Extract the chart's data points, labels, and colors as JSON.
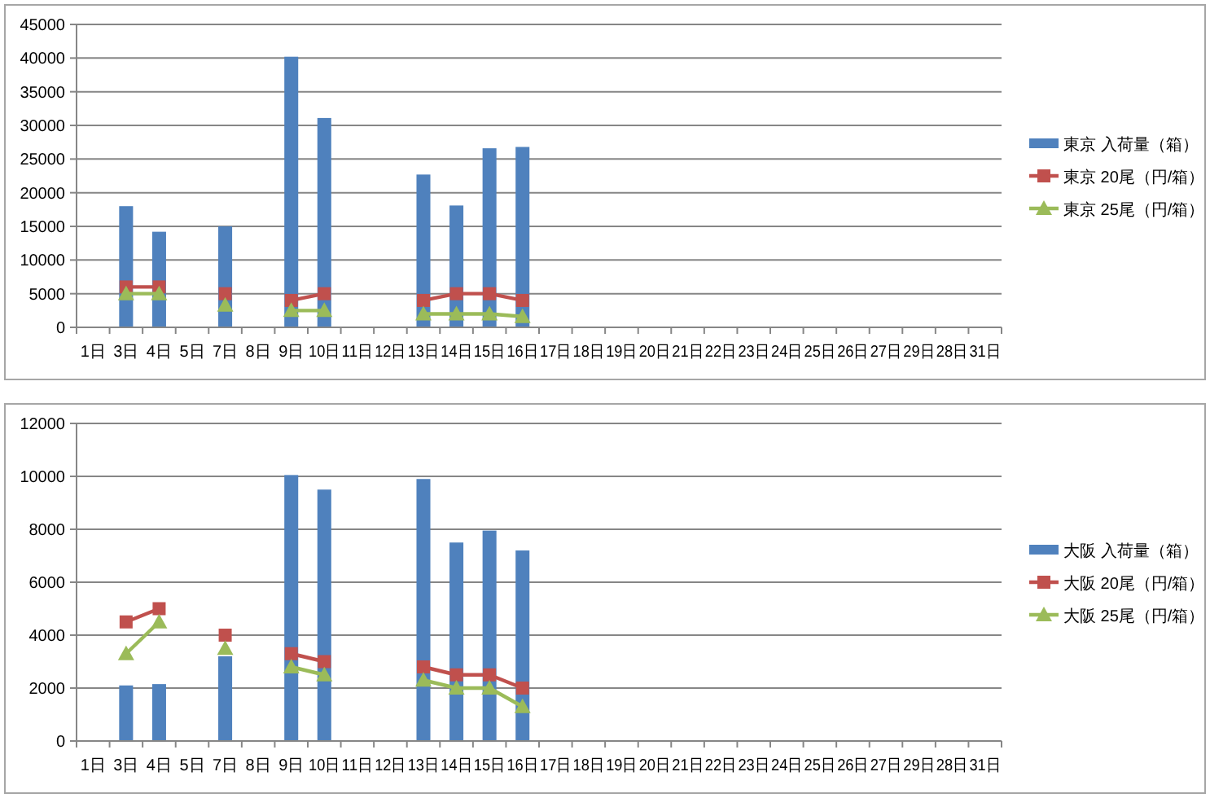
{
  "chart_data": [
    {
      "type": "bar",
      "categories": [
        "1日",
        "3日",
        "4日",
        "5日",
        "7日",
        "8日",
        "9日",
        "10日",
        "11日",
        "12日",
        "13日",
        "14日",
        "15日",
        "16日",
        "17日",
        "18日",
        "19日",
        "20日",
        "21日",
        "22日",
        "23日",
        "24日",
        "25日",
        "26日",
        "27日",
        "29日",
        "28日",
        "31日"
      ],
      "ylim": [
        0,
        45000
      ],
      "yticks": [
        0,
        5000,
        10000,
        15000,
        20000,
        25000,
        30000,
        35000,
        40000,
        45000
      ],
      "grid": "y",
      "legend": "right",
      "series": [
        {
          "name": "東京 入荷量（箱）",
          "color": "#4f81bd",
          "values": [
            null,
            18000,
            14200,
            null,
            15000,
            null,
            40200,
            31100,
            null,
            null,
            22700,
            18100,
            26600,
            26800,
            null,
            null,
            null,
            null,
            null,
            null,
            null,
            null,
            null,
            null,
            null,
            null,
            null,
            null
          ]
        },
        {
          "name": "東京 20尾（円/箱）",
          "type": "line",
          "marker": "square",
          "color": "#c0504d",
          "values": [
            null,
            6000,
            6000,
            null,
            5000,
            null,
            4000,
            5000,
            null,
            null,
            4000,
            5000,
            5000,
            4000,
            null,
            null,
            null,
            null,
            null,
            null,
            null,
            null,
            null,
            null,
            null,
            null,
            null,
            null
          ]
        },
        {
          "name": "東京 25尾（円/箱）",
          "type": "line",
          "marker": "triangle",
          "color": "#9bbb59",
          "values": [
            null,
            5000,
            5000,
            null,
            3300,
            null,
            2500,
            2500,
            null,
            null,
            2000,
            2000,
            2000,
            1600,
            null,
            null,
            null,
            null,
            null,
            null,
            null,
            null,
            null,
            null,
            null,
            null,
            null,
            null
          ]
        }
      ]
    },
    {
      "type": "bar",
      "categories": [
        "1日",
        "3日",
        "4日",
        "5日",
        "7日",
        "8日",
        "9日",
        "10日",
        "11日",
        "12日",
        "13日",
        "14日",
        "15日",
        "16日",
        "17日",
        "18日",
        "19日",
        "20日",
        "21日",
        "22日",
        "23日",
        "24日",
        "25日",
        "26日",
        "27日",
        "29日",
        "28日",
        "31日"
      ],
      "ylim": [
        0,
        12000
      ],
      "yticks": [
        0,
        2000,
        4000,
        6000,
        8000,
        10000,
        12000
      ],
      "grid": "y",
      "legend": "right",
      "series": [
        {
          "name": "大阪 入荷量（箱）",
          "color": "#4f81bd",
          "values": [
            null,
            2100,
            2150,
            null,
            3200,
            null,
            10050,
            9500,
            null,
            null,
            9900,
            7500,
            7950,
            7200,
            null,
            null,
            null,
            null,
            null,
            null,
            null,
            null,
            null,
            null,
            null,
            null,
            null,
            null
          ]
        },
        {
          "name": "大阪 20尾（円/箱）",
          "type": "line",
          "marker": "square",
          "color": "#c0504d",
          "values": [
            null,
            4500,
            5000,
            null,
            4000,
            null,
            3300,
            3000,
            null,
            null,
            2800,
            2500,
            2500,
            2000,
            null,
            null,
            null,
            null,
            null,
            null,
            null,
            null,
            null,
            null,
            null,
            null,
            null,
            null
          ]
        },
        {
          "name": "大阪 25尾（円/箱）",
          "type": "line",
          "marker": "triangle",
          "color": "#9bbb59",
          "values": [
            null,
            3300,
            4500,
            null,
            3500,
            null,
            2800,
            2500,
            null,
            null,
            2300,
            2000,
            2000,
            1300,
            null,
            null,
            null,
            null,
            null,
            null,
            null,
            null,
            null,
            null,
            null,
            null,
            null,
            null
          ]
        }
      ]
    }
  ]
}
